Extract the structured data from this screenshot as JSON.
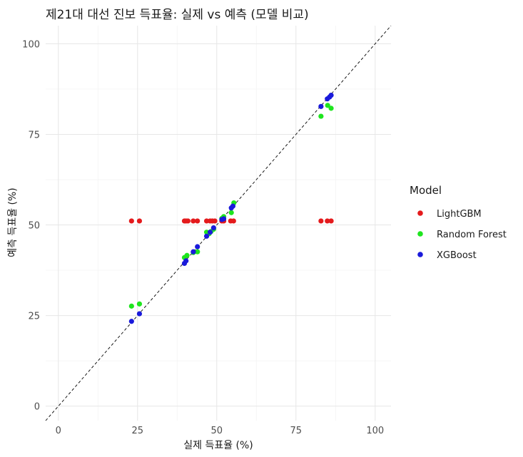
{
  "chart_data": {
    "type": "scatter",
    "title": "제21대 대선 진보 득표율: 실제 vs 예측 (모델 비교)",
    "xlabel": "실제 득표율 (%)",
    "ylabel": "예측 득표율 (%)",
    "xlim": [
      -4,
      105
    ],
    "ylim": [
      -4,
      105
    ],
    "xticks": [
      0,
      25,
      50,
      75,
      100
    ],
    "yticks": [
      0,
      25,
      50,
      75,
      100
    ],
    "grid": true,
    "reference_line": "y = x (dashed)",
    "legend": {
      "title": "Model",
      "position": "right"
    },
    "series": [
      {
        "name": "LightGBM",
        "color": "#e41a1c",
        "points": [
          [
            23.1,
            51.1
          ],
          [
            25.6,
            51.1
          ],
          [
            39.8,
            51.1
          ],
          [
            40.3,
            51.1
          ],
          [
            40.9,
            51.1
          ],
          [
            42.6,
            51.1
          ],
          [
            43.9,
            51.1
          ],
          [
            46.8,
            51.1
          ],
          [
            47.9,
            51.1
          ],
          [
            48.6,
            51.1
          ],
          [
            49.4,
            51.1
          ],
          [
            51.6,
            51.1
          ],
          [
            52.2,
            51.1
          ],
          [
            54.4,
            51.1
          ],
          [
            55.3,
            51.1
          ],
          [
            82.9,
            51.1
          ],
          [
            84.9,
            51.1
          ],
          [
            86.1,
            51.1
          ]
        ]
      },
      {
        "name": "Random Forest",
        "color": "#1ee51e",
        "points": [
          [
            23.1,
            27.6
          ],
          [
            25.6,
            28.2
          ],
          [
            39.8,
            41.0
          ],
          [
            40.6,
            41.6
          ],
          [
            42.6,
            42.4
          ],
          [
            43.9,
            42.6
          ],
          [
            46.8,
            48.0
          ],
          [
            47.6,
            47.6
          ],
          [
            48.2,
            48.2
          ],
          [
            49.0,
            48.8
          ],
          [
            51.6,
            51.8
          ],
          [
            52.2,
            52.3
          ],
          [
            54.6,
            53.4
          ],
          [
            55.4,
            56.1
          ],
          [
            82.9,
            80.0
          ],
          [
            85.0,
            83.0
          ],
          [
            86.1,
            82.2
          ]
        ]
      },
      {
        "name": "XGBoost",
        "color": "#1a1adb",
        "points": [
          [
            23.1,
            23.4
          ],
          [
            25.6,
            25.5
          ],
          [
            39.8,
            39.4
          ],
          [
            40.3,
            40.1
          ],
          [
            42.6,
            42.6
          ],
          [
            43.9,
            44.0
          ],
          [
            46.8,
            46.9
          ],
          [
            47.9,
            48.0
          ],
          [
            49.0,
            49.2
          ],
          [
            51.6,
            51.5
          ],
          [
            52.2,
            51.7
          ],
          [
            54.6,
            54.7
          ],
          [
            55.1,
            55.2
          ],
          [
            82.9,
            82.7
          ],
          [
            84.9,
            84.8
          ],
          [
            85.6,
            85.3
          ],
          [
            86.1,
            85.8
          ]
        ]
      }
    ]
  }
}
